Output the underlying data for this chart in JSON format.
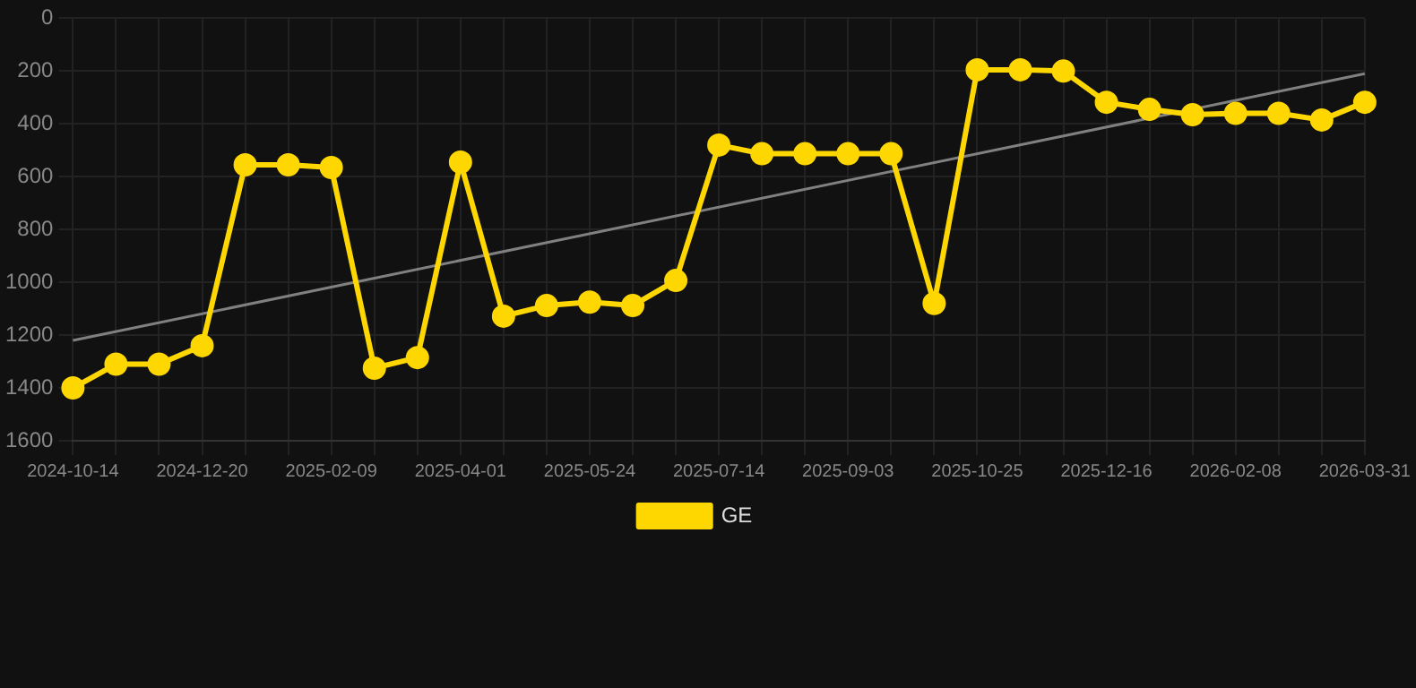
{
  "chart_data": {
    "type": "line",
    "categories": [
      "2024-10-14",
      null,
      null,
      "2024-12-20",
      null,
      null,
      "2025-02-09",
      null,
      null,
      "2025-04-01",
      null,
      null,
      "2025-05-24",
      null,
      null,
      "2025-07-14",
      null,
      null,
      "2025-09-03",
      null,
      null,
      "2025-10-25",
      null,
      null,
      "2025-12-16",
      null,
      null,
      "2026-02-08",
      null,
      null,
      "2026-03-31"
    ],
    "series": [
      {
        "name": "GE",
        "color": "#ffd700",
        "marker": "circle",
        "values": [
          1400,
          1310,
          1310,
          1240,
          555,
          555,
          565,
          1325,
          1285,
          545,
          1128,
          1088,
          1075,
          1088,
          993,
          480,
          513,
          513,
          513,
          513,
          1080,
          195,
          195,
          200,
          318,
          345,
          365,
          360,
          360,
          385,
          318
        ]
      },
      {
        "color": "#808080",
        "marker": "none",
        "values": [
          1220,
          null,
          null,
          null,
          null,
          null,
          null,
          null,
          null,
          null,
          null,
          null,
          null,
          null,
          null,
          null,
          null,
          null,
          null,
          null,
          null,
          null,
          null,
          null,
          null,
          null,
          null,
          null,
          null,
          null,
          210
        ]
      }
    ],
    "ylim": [
      1600,
      0
    ],
    "yticks": [
      0,
      200,
      400,
      600,
      800,
      1000,
      1200,
      1400,
      1600
    ],
    "grid": true,
    "legend": "bottom"
  }
}
